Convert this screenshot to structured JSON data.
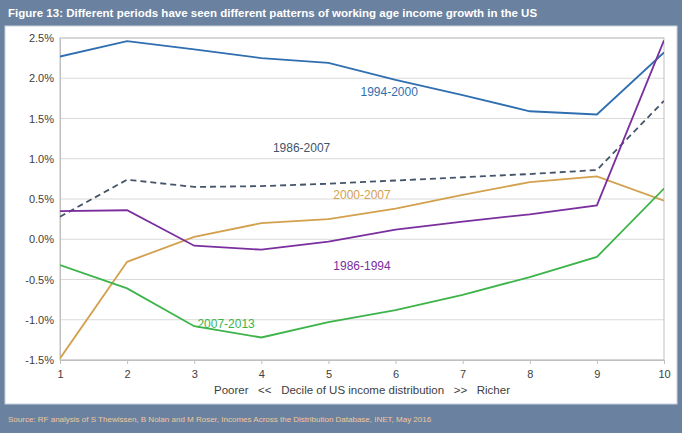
{
  "chart_data": {
    "type": "line",
    "title": "Figure 13: Different periods have seen different patterns of working age income growth in the US",
    "x_label": "Poorer   <<   Decile of US income distribution   >>   Richer",
    "source": "Source: RF analysis of S Thewissen, B Nolan and M Roser, Incomes Across the Distribution Database, INET, May 2016",
    "x": [
      1,
      2,
      3,
      4,
      5,
      6,
      7,
      8,
      9,
      10
    ],
    "xlim": [
      1,
      10
    ],
    "xticks": [
      1,
      2,
      3,
      4,
      5,
      6,
      7,
      8,
      9,
      10
    ],
    "ylim": [
      -1.5,
      2.5
    ],
    "yticks": [
      {
        "value": -1.5,
        "label": "-1.5%"
      },
      {
        "value": -1.0,
        "label": "-1.0%"
      },
      {
        "value": -0.5,
        "label": "-0.5%"
      },
      {
        "value": 0,
        "label": "0.0%"
      },
      {
        "value": 0.5,
        "label": "0.5%"
      },
      {
        "value": 1.0,
        "label": "1.0%"
      },
      {
        "value": 1.5,
        "label": "1.5%"
      },
      {
        "value": 2.0,
        "label": "2.0%"
      },
      {
        "value": 2.5,
        "label": "2.5%"
      }
    ],
    "grid": true,
    "series": [
      {
        "name": "1994-2000",
        "color": "#2f6fb0",
        "line_style": "solid",
        "values": [
          2.27,
          2.46,
          2.36,
          2.25,
          2.19,
          1.98,
          1.79,
          1.59,
          1.55,
          2.32
        ]
      },
      {
        "name": "1986-2007",
        "color": "#44546a",
        "line_style": "dashed",
        "values": [
          0.28,
          0.74,
          0.65,
          0.66,
          0.69,
          0.73,
          0.77,
          0.81,
          0.86,
          1.72
        ]
      },
      {
        "name": "2000-2007",
        "color": "#d3a04e",
        "line_style": "solid",
        "values": [
          -1.48,
          -0.28,
          0.03,
          0.2,
          0.25,
          0.38,
          0.55,
          0.71,
          0.78,
          0.48
        ]
      },
      {
        "name": "1986-1994",
        "color": "#7b2f9e",
        "line_style": "solid",
        "values": [
          0.35,
          0.36,
          -0.08,
          -0.13,
          -0.03,
          0.12,
          0.22,
          0.31,
          0.42,
          2.47
        ]
      },
      {
        "name": "2007-2013",
        "color": "#3cb44a",
        "line_style": "solid",
        "values": [
          -0.32,
          -0.61,
          -1.08,
          -1.22,
          -1.03,
          -0.88,
          -0.69,
          -0.47,
          -0.22,
          0.63
        ]
      }
    ]
  }
}
